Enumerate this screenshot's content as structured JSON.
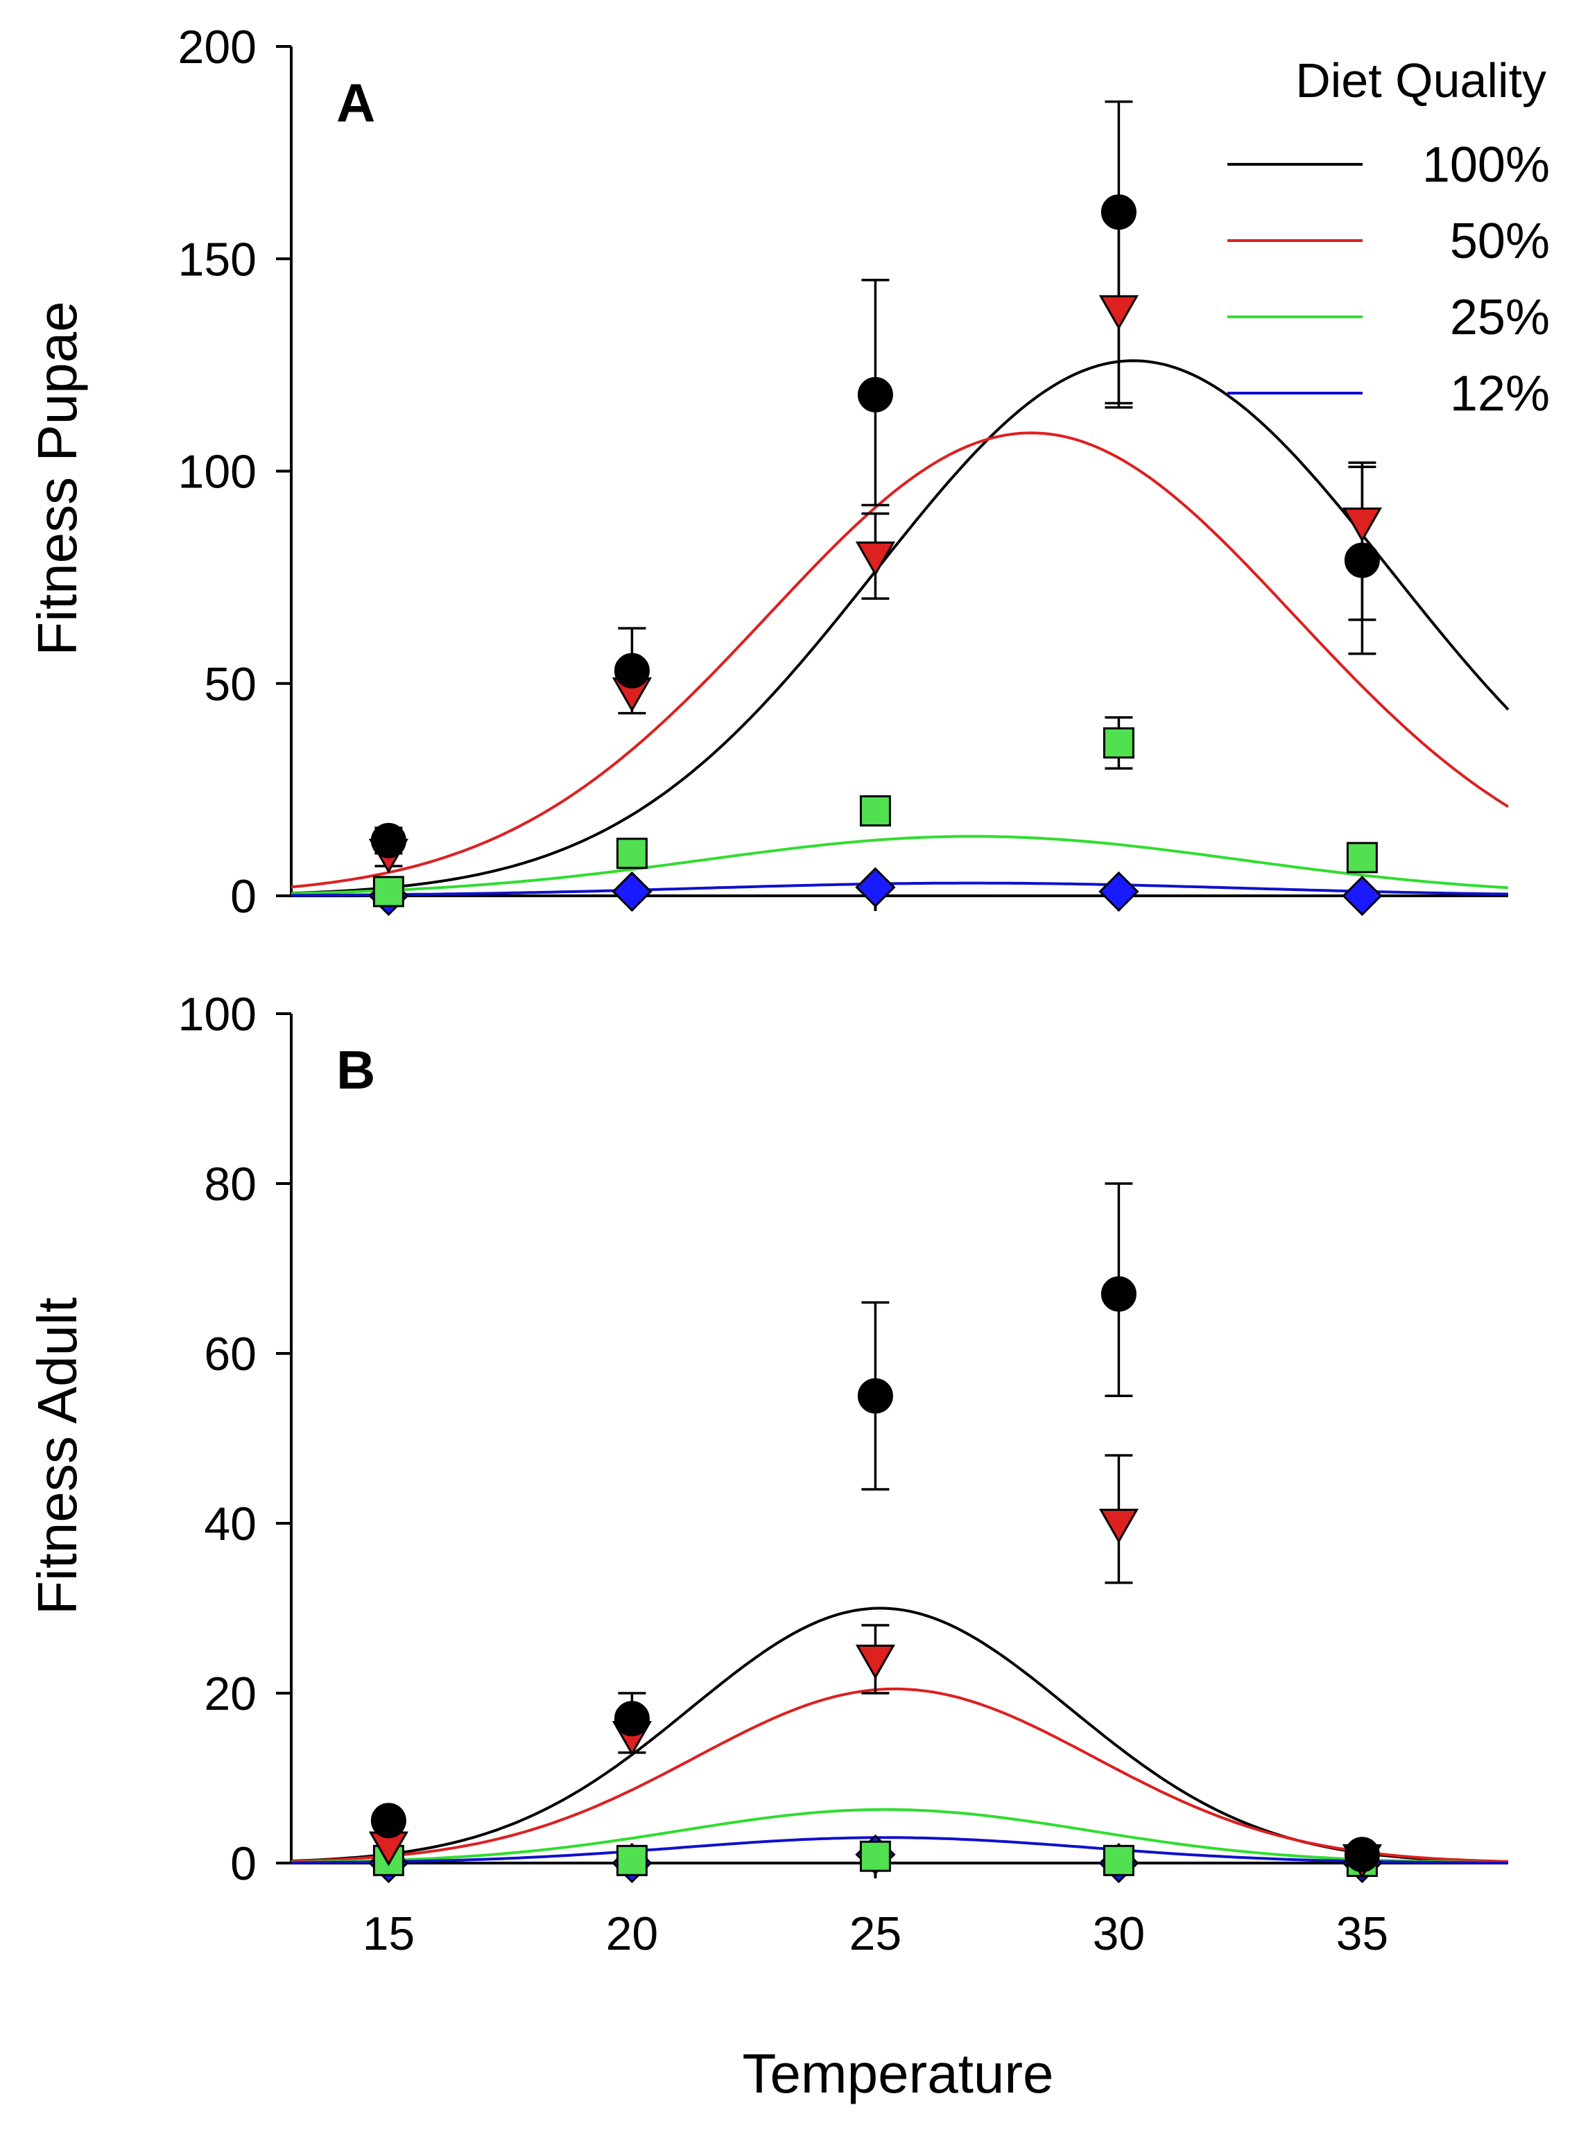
{
  "chart_data": [
    {
      "panel": "A",
      "type": "scatter",
      "title": "",
      "xlabel": "",
      "ylabel": "Fitness Pupae",
      "xlim": [
        13,
        38
      ],
      "ylim": [
        0,
        200
      ],
      "yticks": [
        0,
        50,
        100,
        150,
        200
      ],
      "xticks": [
        15,
        20,
        25,
        30,
        35
      ],
      "grid": false,
      "legend": {
        "title": "Diet Quality",
        "position": "top-right",
        "entries": [
          {
            "label": "100%",
            "color": "#000000"
          },
          {
            "label": "50%",
            "color": "#dd2020"
          },
          {
            "label": "25%",
            "color": "#30dd30"
          },
          {
            "label": "12%",
            "color": "#1010cc"
          }
        ]
      },
      "series": [
        {
          "name": "100%",
          "color": "#000000",
          "marker": "circle",
          "marker_fill": "#000000",
          "x": [
            15,
            20,
            25,
            30,
            35
          ],
          "y": [
            13,
            53,
            118,
            161,
            79
          ],
          "err_low": [
            3,
            3,
            26,
            46,
            14
          ],
          "err_high": [
            3,
            10,
            27,
            26,
            22
          ],
          "curve": {
            "peak": 126,
            "mu": 30.3,
            "sigma": 5.3
          }
        },
        {
          "name": "50%",
          "color": "#dd2020",
          "marker": "triangle-down",
          "marker_fill": "#dd2020",
          "x": [
            15,
            20,
            25,
            30,
            35
          ],
          "y": [
            10,
            48,
            80,
            138,
            88
          ],
          "err_low": [
            3,
            5,
            10,
            22,
            31
          ],
          "err_high": [
            3,
            5,
            10,
            22,
            14
          ],
          "curve": {
            "peak": 109,
            "mu": 28.2,
            "sigma": 5.4
          }
        },
        {
          "name": "25%",
          "color": "#30dd30",
          "marker": "square",
          "marker_fill": "#50e050",
          "x": [
            15,
            20,
            25,
            30,
            35
          ],
          "y": [
            1,
            10,
            20,
            36,
            9
          ],
          "err_low": [
            0.5,
            1,
            3,
            6,
            1
          ],
          "err_high": [
            0.5,
            1,
            3,
            6,
            1
          ],
          "curve": {
            "peak": 14,
            "mu": 27,
            "sigma": 5.5
          }
        },
        {
          "name": "12%",
          "color": "#1010cc",
          "marker": "diamond",
          "marker_fill": "#1a1aff",
          "x": [
            15,
            20,
            25,
            30,
            35
          ],
          "y": [
            0,
            1,
            2,
            1,
            0
          ],
          "err_low": [
            0,
            0,
            0,
            0,
            0
          ],
          "err_high": [
            0,
            0,
            0,
            0,
            0
          ],
          "curve": {
            "peak": 3,
            "mu": 27,
            "sigma": 5.5
          }
        }
      ]
    },
    {
      "panel": "B",
      "type": "scatter",
      "title": "",
      "xlabel": "Temperature",
      "ylabel": "Fitness Adult",
      "xlim": [
        13,
        38
      ],
      "ylim": [
        0,
        100
      ],
      "yticks": [
        0,
        20,
        40,
        60,
        80,
        100
      ],
      "xticks": [
        15,
        20,
        25,
        30,
        35
      ],
      "grid": false,
      "series": [
        {
          "name": "100%",
          "color": "#000000",
          "marker": "circle",
          "marker_fill": "#000000",
          "x": [
            15,
            20,
            25,
            30,
            35
          ],
          "y": [
            5,
            17,
            55,
            67,
            1
          ],
          "err_low": [
            0,
            4,
            11,
            12,
            0
          ],
          "err_high": [
            0,
            3,
            11,
            13,
            0
          ],
          "curve": {
            "peak": 30,
            "mu": 25.1,
            "sigma": 3.9
          }
        },
        {
          "name": "50%",
          "color": "#dd2020",
          "marker": "triangle-down",
          "marker_fill": "#dd2020",
          "x": [
            15,
            20,
            25,
            30,
            35
          ],
          "y": [
            2,
            15,
            24,
            40,
            0.5
          ],
          "err_low": [
            0,
            2,
            4,
            7,
            0
          ],
          "err_high": [
            0,
            2,
            4,
            8,
            0
          ],
          "curve": {
            "peak": 20.5,
            "mu": 25.4,
            "sigma": 4.1
          }
        },
        {
          "name": "25%",
          "color": "#30dd30",
          "marker": "square",
          "marker_fill": "#50e050",
          "x": [
            15,
            20,
            25,
            30,
            35
          ],
          "y": [
            0.3,
            0.3,
            0.8,
            0.3,
            0.2
          ],
          "err_low": [
            0,
            0,
            0,
            0,
            0
          ],
          "err_high": [
            0,
            0,
            0,
            0,
            0
          ],
          "curve": {
            "peak": 6.3,
            "mu": 25.2,
            "sigma": 4.2
          }
        },
        {
          "name": "12%",
          "color": "#1010cc",
          "marker": "diamond",
          "marker_fill": "#1a1aff",
          "x": [
            15,
            20,
            25,
            30,
            35
          ],
          "y": [
            0,
            0,
            1,
            0,
            0
          ],
          "err_low": [
            0,
            0,
            0,
            0,
            0
          ],
          "err_high": [
            0,
            0,
            0,
            0,
            0
          ],
          "curve": {
            "peak": 3,
            "mu": 25.2,
            "sigma": 4.2
          }
        }
      ]
    }
  ]
}
